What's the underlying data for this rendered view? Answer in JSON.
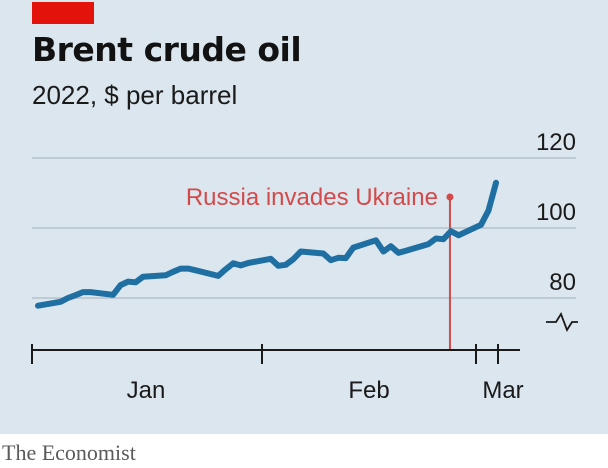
{
  "chart_data": {
    "type": "line",
    "title": "Brent crude oil",
    "subtitle": "2022, $ per barrel",
    "xlabel": "",
    "ylabel": "",
    "ylim": [
      72,
      120
    ],
    "y_ticks": [
      80,
      100,
      120
    ],
    "y_axis_break": true,
    "x_ticks": [
      "Jan",
      "Feb",
      "Mar"
    ],
    "grid": true,
    "series": [
      {
        "color": "#1f6fa3",
        "x": [
          "2021-12-31",
          "2022-01-03",
          "2022-01-04",
          "2022-01-05",
          "2022-01-06",
          "2022-01-07",
          "2022-01-10",
          "2022-01-11",
          "2022-01-12",
          "2022-01-13",
          "2022-01-14",
          "2022-01-17",
          "2022-01-18",
          "2022-01-19",
          "2022-01-20",
          "2022-01-21",
          "2022-01-24",
          "2022-01-25",
          "2022-01-26",
          "2022-01-27",
          "2022-01-28",
          "2022-01-31",
          "2022-02-01",
          "2022-02-02",
          "2022-02-03",
          "2022-02-04",
          "2022-02-07",
          "2022-02-08",
          "2022-02-09",
          "2022-02-10",
          "2022-02-11",
          "2022-02-14",
          "2022-02-15",
          "2022-02-16",
          "2022-02-17",
          "2022-02-18",
          "2022-02-21",
          "2022-02-22",
          "2022-02-23",
          "2022-02-24",
          "2022-02-25",
          "2022-02-28",
          "2022-03-01",
          "2022-03-02"
        ],
        "values": [
          77.8,
          78.9,
          80.0,
          80.8,
          81.7,
          81.7,
          80.9,
          83.7,
          84.7,
          84.5,
          86.1,
          86.5,
          87.5,
          88.4,
          88.4,
          87.9,
          86.3,
          88.2,
          89.9,
          89.3,
          90.0,
          91.2,
          89.2,
          89.5,
          91.1,
          93.3,
          92.7,
          90.8,
          91.5,
          91.4,
          94.4,
          96.5,
          93.3,
          94.8,
          92.9,
          93.5,
          95.4,
          97.0,
          96.8,
          99.1,
          97.9,
          100.9,
          105.0,
          112.9
        ]
      }
    ],
    "annotations": [
      {
        "label": "Russia invades Ukraine",
        "x": "2022-02-24",
        "y": 110,
        "color": "#d44a4a"
      }
    ]
  },
  "source": "The Economist"
}
